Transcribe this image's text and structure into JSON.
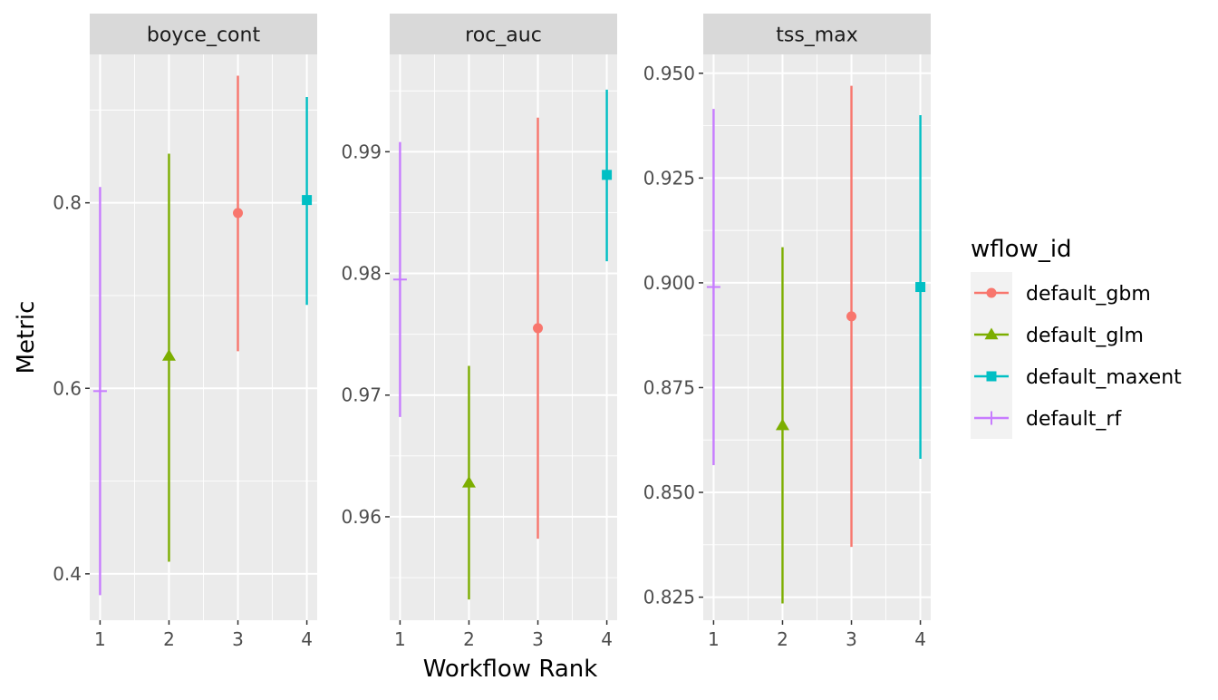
{
  "chart_data": {
    "type": "scatter",
    "xlabel": "Workflow Rank",
    "ylabel": "Metric",
    "x_ticks": [
      1,
      2,
      3,
      4
    ],
    "legend": {
      "title": "wflow_id",
      "position": "right",
      "entries": [
        {
          "name": "default_gbm",
          "color": "#F8766D",
          "shape": "circle"
        },
        {
          "name": "default_glm",
          "color": "#7CAE00",
          "shape": "triangle"
        },
        {
          "name": "default_maxent",
          "color": "#00BFC4",
          "shape": "square"
        },
        {
          "name": "default_rf",
          "color": "#C77CFF",
          "shape": "plus"
        }
      ]
    },
    "grid": true,
    "panels": [
      {
        "title": "boyce_cont",
        "ylim": [
          0.35,
          0.96
        ],
        "y_ticks": [
          0.4,
          0.6,
          0.8
        ],
        "y_tick_labels": [
          "0.4",
          "0.6",
          "0.8"
        ],
        "minor_y": [
          0.5,
          0.7,
          0.9
        ],
        "points": [
          {
            "rank": 1,
            "series": "default_rf",
            "mean": 0.597,
            "lower": 0.377,
            "upper": 0.817
          },
          {
            "rank": 2,
            "series": "default_glm",
            "mean": 0.635,
            "lower": 0.413,
            "upper": 0.853
          },
          {
            "rank": 3,
            "series": "default_gbm",
            "mean": 0.789,
            "lower": 0.64,
            "upper": 0.937
          },
          {
            "rank": 4,
            "series": "default_maxent",
            "mean": 0.803,
            "lower": 0.69,
            "upper": 0.914
          }
        ]
      },
      {
        "title": "roc_auc",
        "ylim": [
          0.9515,
          0.998
        ],
        "y_ticks": [
          0.96,
          0.97,
          0.98,
          0.99
        ],
        "y_tick_labels": [
          "0.96",
          "0.97",
          "0.98",
          "0.99"
        ],
        "minor_y": [
          0.955,
          0.965,
          0.975,
          0.985,
          0.995
        ],
        "points": [
          {
            "rank": 1,
            "series": "default_rf",
            "mean": 0.9795,
            "lower": 0.9682,
            "upper": 0.9908
          },
          {
            "rank": 2,
            "series": "default_glm",
            "mean": 0.9628,
            "lower": 0.9532,
            "upper": 0.9724
          },
          {
            "rank": 3,
            "series": "default_gbm",
            "mean": 0.9755,
            "lower": 0.9582,
            "upper": 0.9928
          },
          {
            "rank": 4,
            "series": "default_maxent",
            "mean": 0.9881,
            "lower": 0.981,
            "upper": 0.9951
          }
        ]
      },
      {
        "title": "tss_max",
        "ylim": [
          0.8195,
          0.9545
        ],
        "y_ticks": [
          0.825,
          0.85,
          0.875,
          0.9,
          0.925,
          0.95
        ],
        "y_tick_labels": [
          "0.825",
          "0.850",
          "0.875",
          "0.900",
          "0.925",
          "0.950"
        ],
        "minor_y": [
          0.8375,
          0.8625,
          0.8875,
          0.9125,
          0.9375
        ],
        "points": [
          {
            "rank": 1,
            "series": "default_rf",
            "mean": 0.899,
            "lower": 0.8565,
            "upper": 0.9415
          },
          {
            "rank": 2,
            "series": "default_glm",
            "mean": 0.866,
            "lower": 0.8235,
            "upper": 0.9085
          },
          {
            "rank": 3,
            "series": "default_gbm",
            "mean": 0.892,
            "lower": 0.837,
            "upper": 0.947
          },
          {
            "rank": 4,
            "series": "default_maxent",
            "mean": 0.899,
            "lower": 0.858,
            "upper": 0.94
          }
        ]
      }
    ]
  }
}
